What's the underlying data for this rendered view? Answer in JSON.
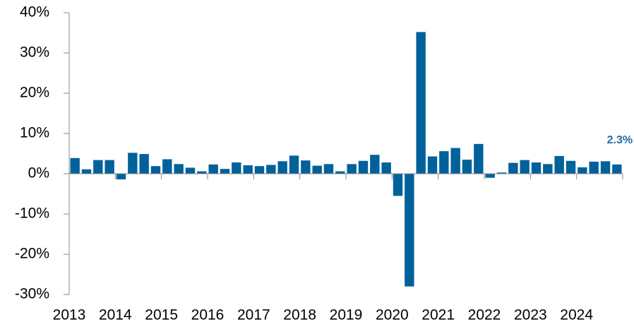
{
  "chart_data": {
    "type": "bar",
    "categories": [
      "2013",
      null,
      null,
      null,
      "2014",
      null,
      null,
      null,
      "2015",
      null,
      null,
      null,
      "2016",
      null,
      null,
      null,
      "2017",
      null,
      null,
      null,
      "2018",
      null,
      null,
      null,
      "2019",
      null,
      null,
      null,
      "2020",
      null,
      null,
      null,
      "2021",
      null,
      null,
      null,
      "2022",
      null,
      null,
      null,
      "2023",
      null,
      null,
      null,
      "2024",
      null,
      null,
      null
    ],
    "values": [
      3.9,
      1.1,
      3.4,
      3.4,
      -1.4,
      5.2,
      4.9,
      1.9,
      3.6,
      2.4,
      1.5,
      0.6,
      2.3,
      1.2,
      2.8,
      2.1,
      1.9,
      2.2,
      3.1,
      4.5,
      3.3,
      2.0,
      2.4,
      0.6,
      2.4,
      3.2,
      4.7,
      2.8,
      -5.5,
      -28.0,
      35.2,
      4.3,
      5.6,
      6.4,
      3.5,
      7.4,
      -1.0,
      0.3,
      2.7,
      3.4,
      2.8,
      2.4,
      4.4,
      3.2,
      1.6,
      3.0,
      3.1,
      2.3
    ],
    "value_labels": [
      null,
      null,
      null,
      null,
      null,
      null,
      null,
      null,
      null,
      null,
      null,
      null,
      null,
      null,
      null,
      null,
      null,
      null,
      null,
      null,
      null,
      null,
      null,
      null,
      null,
      null,
      null,
      null,
      null,
      null,
      null,
      null,
      null,
      null,
      null,
      null,
      null,
      null,
      null,
      null,
      null,
      null,
      null,
      null,
      null,
      null,
      null,
      "2.3%"
    ],
    "color": "#00619b",
    "label_color": "#1f6ea5",
    "ylim": [
      -30,
      40
    ],
    "yticks": [
      {
        "value": -30,
        "label": "-30%"
      },
      {
        "value": -20,
        "label": "-20%"
      },
      {
        "value": -10,
        "label": "-10%"
      },
      {
        "value": 0,
        "label": "0%"
      },
      {
        "value": 10,
        "label": "10%"
      },
      {
        "value": 20,
        "label": "20%"
      },
      {
        "value": 30,
        "label": "30%"
      },
      {
        "value": 40,
        "label": "40%"
      }
    ],
    "grid": false
  }
}
